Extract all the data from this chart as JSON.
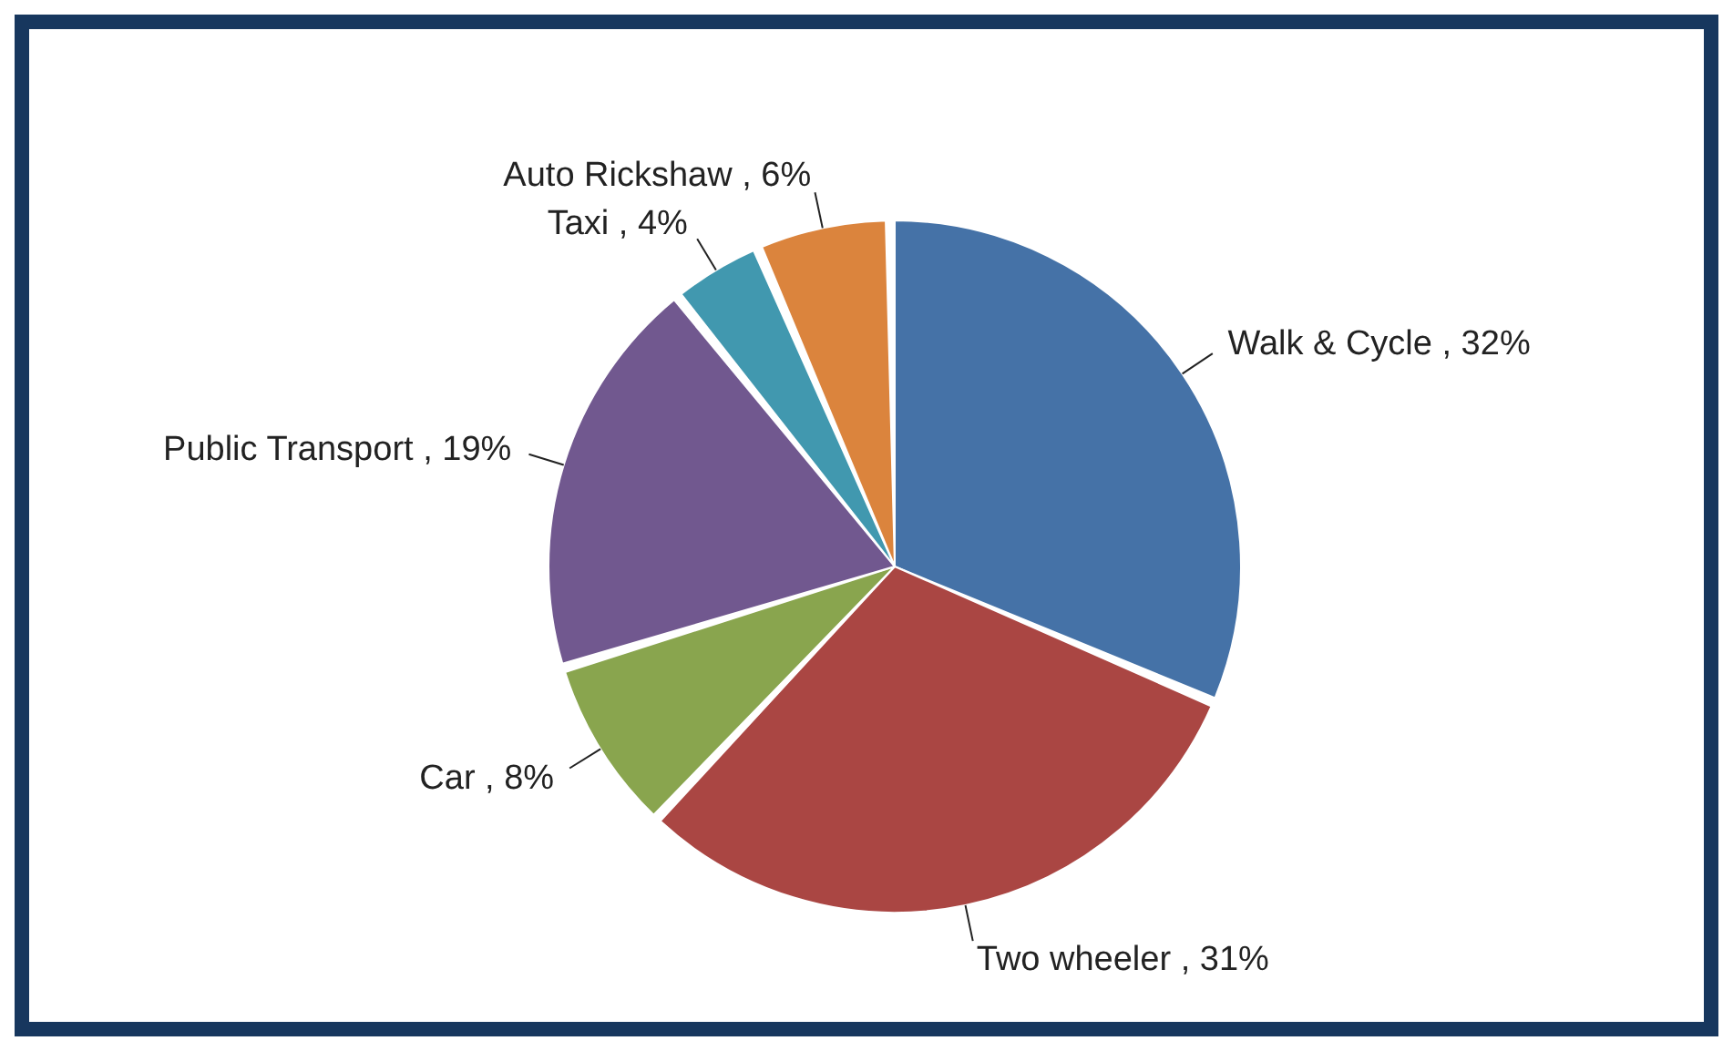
{
  "chart_data": {
    "type": "pie",
    "categories": [
      "Walk & Cycle",
      "Two wheeler",
      "Car",
      "Public Transport",
      "Taxi",
      "Auto Rickshaw"
    ],
    "values": [
      32,
      31,
      8,
      19,
      4,
      6
    ],
    "value_labels": [
      "32%",
      "31%",
      "8%",
      "19%",
      "4%",
      "6%"
    ],
    "colors": [
      "#4572a7",
      "#aa4643",
      "#89a54e",
      "#71588f",
      "#4198af",
      "#db843d"
    ],
    "legend": false
  }
}
